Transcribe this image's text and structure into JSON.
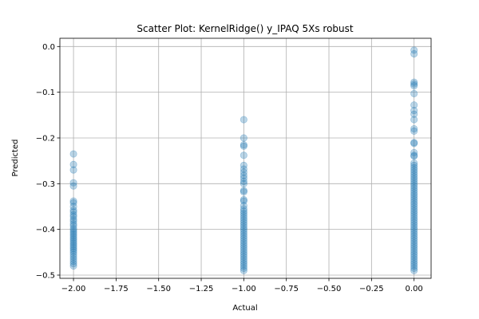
{
  "chart_data": {
    "type": "scatter",
    "title": "Scatter Plot: KernelRidge() y_IPAQ 5Xs robust",
    "xlabel": "Actual",
    "ylabel": "Predicted",
    "xlim": [
      -2.08,
      0.1
    ],
    "ylim": [
      -0.507,
      0.018
    ],
    "xticks": [
      -2.0,
      -1.75,
      -1.5,
      -1.25,
      -1.0,
      -0.75,
      -0.5,
      -0.25,
      0.0
    ],
    "xtick_labels": [
      "−2.00",
      "−1.75",
      "−1.50",
      "−1.25",
      "−1.00",
      "−0.75",
      "−0.50",
      "−0.25",
      "0.00"
    ],
    "yticks": [
      0.0,
      -0.1,
      -0.2,
      -0.3,
      -0.4,
      -0.5
    ],
    "ytick_labels": [
      "0.0",
      "−0.1",
      "−0.2",
      "−0.3",
      "−0.4",
      "−0.5"
    ],
    "grid": true,
    "marker_color": "#1f77b4",
    "marker_alpha": 0.3,
    "series": [
      {
        "x": -2.0,
        "y": [
          -0.235,
          -0.258,
          -0.27,
          -0.298,
          -0.305,
          -0.338,
          -0.342,
          -0.35,
          -0.358,
          -0.362,
          -0.368,
          -0.372,
          -0.378,
          -0.382,
          -0.388,
          -0.392,
          -0.398,
          -0.402,
          -0.406,
          -0.41,
          -0.414,
          -0.418,
          -0.422,
          -0.426,
          -0.43,
          -0.434,
          -0.438,
          -0.442,
          -0.446,
          -0.45,
          -0.455,
          -0.46,
          -0.465,
          -0.47,
          -0.475,
          -0.48
        ]
      },
      {
        "x": -1.0,
        "y": [
          -0.16,
          -0.2,
          -0.215,
          -0.218,
          -0.238,
          -0.26,
          -0.268,
          -0.275,
          -0.282,
          -0.288,
          -0.295,
          -0.3,
          -0.315,
          -0.318,
          -0.335,
          -0.338,
          -0.348,
          -0.355,
          -0.36,
          -0.365,
          -0.37,
          -0.375,
          -0.38,
          -0.385,
          -0.39,
          -0.395,
          -0.4,
          -0.405,
          -0.41,
          -0.415,
          -0.42,
          -0.425,
          -0.43,
          -0.435,
          -0.44,
          -0.445,
          -0.45,
          -0.455,
          -0.46,
          -0.465,
          -0.47,
          -0.475,
          -0.48,
          -0.485,
          -0.49
        ]
      },
      {
        "x": 0.0,
        "y": [
          -0.008,
          -0.016,
          -0.078,
          -0.082,
          -0.086,
          -0.103,
          -0.128,
          -0.14,
          -0.148,
          -0.16,
          -0.18,
          -0.185,
          -0.21,
          -0.212,
          -0.232,
          -0.238,
          -0.24,
          -0.255,
          -0.26,
          -0.265,
          -0.27,
          -0.275,
          -0.28,
          -0.285,
          -0.29,
          -0.295,
          -0.3,
          -0.305,
          -0.31,
          -0.315,
          -0.32,
          -0.325,
          -0.33,
          -0.335,
          -0.34,
          -0.345,
          -0.35,
          -0.355,
          -0.36,
          -0.365,
          -0.37,
          -0.375,
          -0.38,
          -0.385,
          -0.39,
          -0.395,
          -0.4,
          -0.405,
          -0.41,
          -0.415,
          -0.42,
          -0.425,
          -0.43,
          -0.435,
          -0.44,
          -0.445,
          -0.45,
          -0.455,
          -0.46,
          -0.465,
          -0.47,
          -0.475,
          -0.48,
          -0.485,
          -0.49
        ]
      }
    ]
  }
}
